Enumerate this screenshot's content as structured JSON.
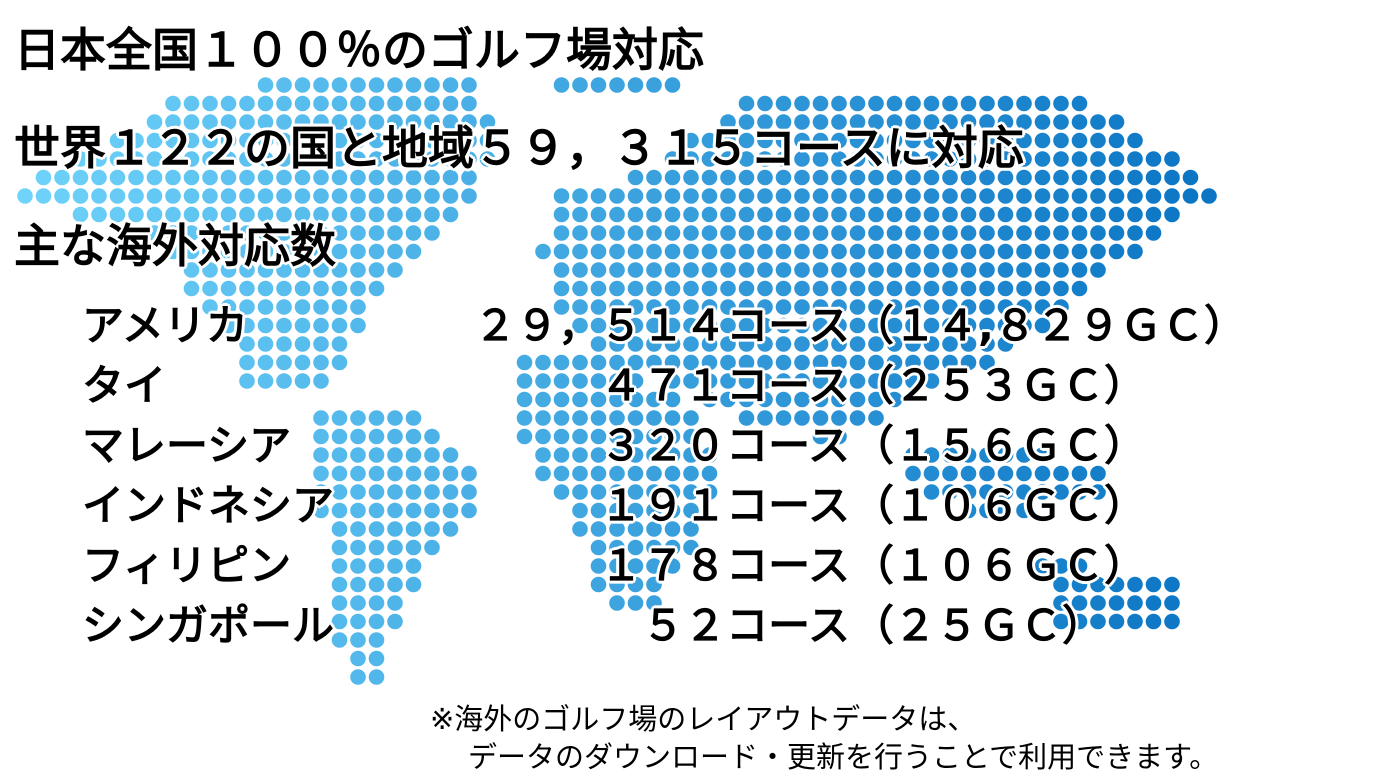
{
  "headings": [
    "日本全国１００％のゴルフ場対応",
    "世界１２２の国と地域５９，３１５コースに対応",
    "主な海外対応数"
  ],
  "rows": [
    {
      "name": "アメリカ",
      "courses": "２９，５１４コース",
      "gc": "（１４,８２９ＧＣ）"
    },
    {
      "name": "タイ",
      "courses": "４７１コース",
      "gc": "（２５３ＧＣ）"
    },
    {
      "name": "マレーシア",
      "courses": "３２０コース",
      "gc": "（１５６ＧＣ）"
    },
    {
      "name": "インドネシア",
      "courses": "１９１コース",
      "gc": "（１０６ＧＣ）"
    },
    {
      "name": "フィリピン",
      "courses": "１７８コース",
      "gc": "（１０６ＧＣ）"
    },
    {
      "name": "シンガポール",
      "courses": "５２コース",
      "gc": "（２５ＧＣ）"
    }
  ],
  "footnote": [
    "※海外のゴルフ場のレイアウトデータは、",
    "データのダウンロード・更新を行うことで利用できます。"
  ],
  "colors": {
    "dot_light": "#6fd3fa",
    "dot_dark": "#0a74c4",
    "text": "#000000"
  },
  "background_image": "dotted-world-map"
}
